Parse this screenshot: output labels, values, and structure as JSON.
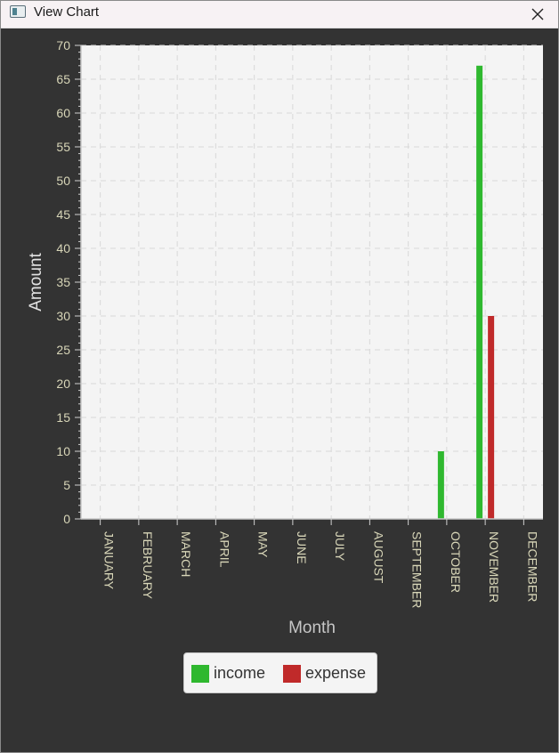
{
  "window": {
    "title": "View Chart"
  },
  "chart_data": {
    "type": "bar",
    "title": "",
    "xlabel": "Month",
    "ylabel": "Amount",
    "ylim": [
      0,
      70
    ],
    "ytick_step": 5,
    "grid": true,
    "legend_position": "bottom",
    "categories": [
      "JANUARY",
      "FEBRUARY",
      "MARCH",
      "APRIL",
      "MAY",
      "JUNE",
      "JULY",
      "AUGUST",
      "SEPTEMBER",
      "OCTOBER",
      "NOVEMBER",
      "DECEMBER"
    ],
    "series": [
      {
        "name": "income",
        "color": "#2fb82f",
        "values": [
          0,
          0,
          0,
          0,
          0,
          0,
          0,
          0,
          0,
          10,
          67,
          0
        ]
      },
      {
        "name": "expense",
        "color": "#c02a2a",
        "values": [
          0,
          0,
          0,
          0,
          0,
          0,
          0,
          0,
          0,
          0,
          30,
          0
        ]
      }
    ]
  },
  "icons": {
    "app": "window-app-icon",
    "close": "close-icon"
  }
}
